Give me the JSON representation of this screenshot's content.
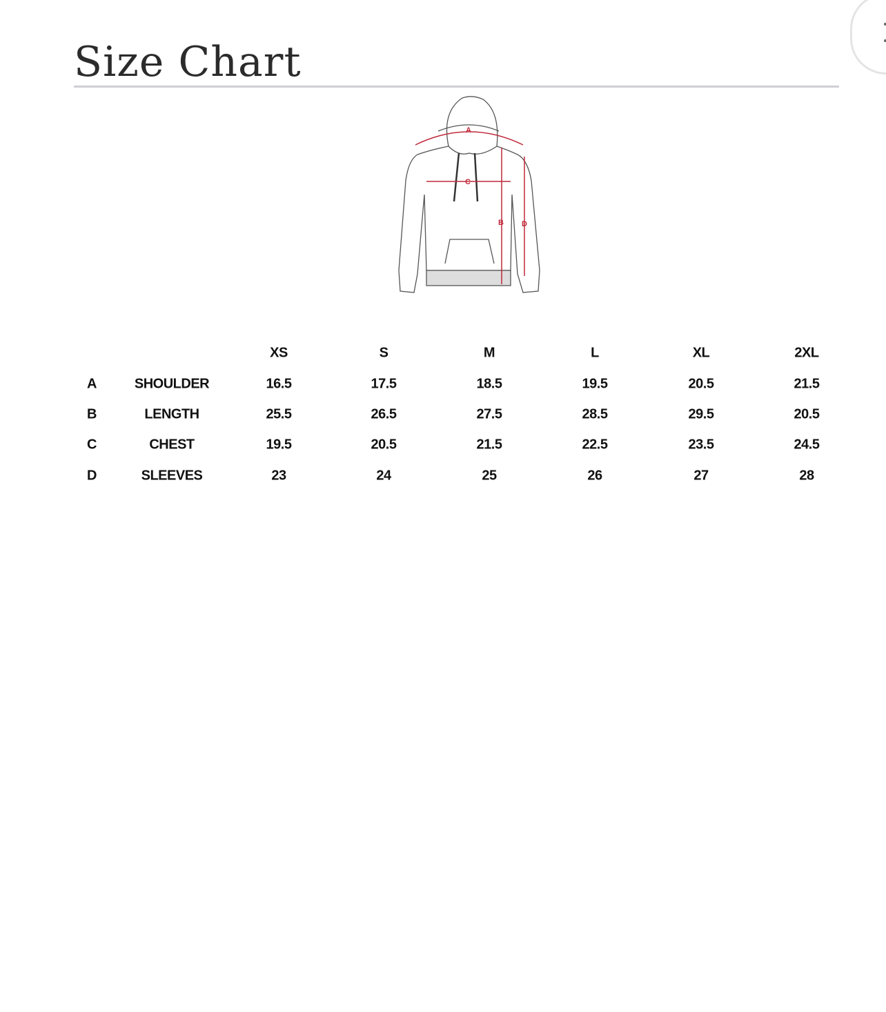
{
  "header": {
    "title": "Size Chart",
    "close_icon": "close-icon"
  },
  "diagram": {
    "labels": [
      "A",
      "B",
      "C",
      "D"
    ],
    "accent_color": "#c0283a"
  },
  "table": {
    "columns": [
      "XS",
      "S",
      "M",
      "L",
      "XL",
      "2XL"
    ],
    "rows": [
      {
        "key": "A",
        "name": "SHOULDER",
        "values": [
          "16.5",
          "17.5",
          "18.5",
          "19.5",
          "20.5",
          "21.5"
        ]
      },
      {
        "key": "B",
        "name": "LENGTH",
        "values": [
          "25.5",
          "26.5",
          "27.5",
          "28.5",
          "29.5",
          "20.5"
        ]
      },
      {
        "key": "C",
        "name": "CHEST",
        "values": [
          "19.5",
          "20.5",
          "21.5",
          "22.5",
          "23.5",
          "24.5"
        ]
      },
      {
        "key": "D",
        "name": "SLEEVES",
        "values": [
          "23",
          "24",
          "25",
          "26",
          "27",
          "28"
        ]
      }
    ]
  }
}
